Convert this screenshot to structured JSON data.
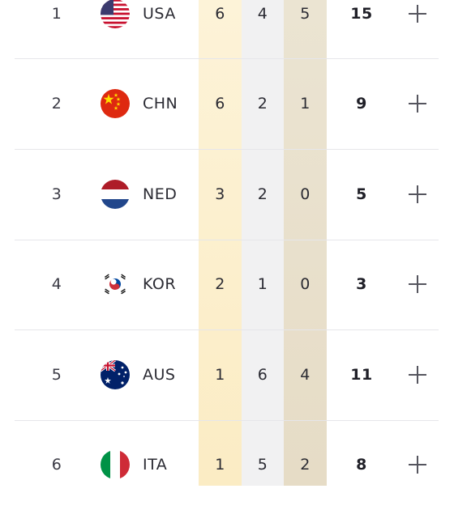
{
  "medal_table": {
    "rows": [
      {
        "rank": "1",
        "noc": "USA",
        "flag_icon": "usa-flag-icon",
        "gold": "6",
        "silver": "4",
        "bronze": "5",
        "total": "15"
      },
      {
        "rank": "2",
        "noc": "CHN",
        "flag_icon": "china-flag-icon",
        "gold": "6",
        "silver": "2",
        "bronze": "1",
        "total": "9"
      },
      {
        "rank": "3",
        "noc": "NED",
        "flag_icon": "netherlands-flag-icon",
        "gold": "3",
        "silver": "2",
        "bronze": "0",
        "total": "5"
      },
      {
        "rank": "4",
        "noc": "KOR",
        "flag_icon": "korea-flag-icon",
        "gold": "2",
        "silver": "1",
        "bronze": "0",
        "total": "3"
      },
      {
        "rank": "5",
        "noc": "AUS",
        "flag_icon": "australia-flag-icon",
        "gold": "1",
        "silver": "6",
        "bronze": "4",
        "total": "11"
      },
      {
        "rank": "6",
        "noc": "ITA",
        "flag_icon": "italy-flag-icon",
        "gold": "1",
        "silver": "5",
        "bronze": "2",
        "total": "8"
      }
    ],
    "expand_icon": "plus-icon"
  },
  "colors": {
    "gold_column": "#fbecc4",
    "silver_column": "#f1f1f2",
    "bronze_column": "#e6dcc6",
    "divider": "#e6e6ea",
    "text": "#2b2b33"
  }
}
